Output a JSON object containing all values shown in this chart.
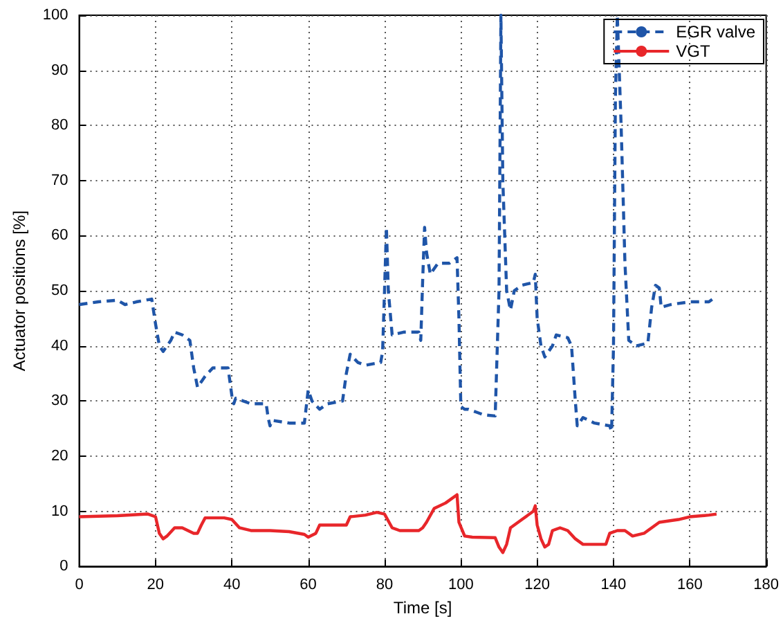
{
  "chart_data": {
    "type": "line",
    "xlabel": "Time [s]",
    "ylabel": "Actuator positions [%]",
    "xlim": [
      0,
      180
    ],
    "xticks": [
      0,
      20,
      40,
      60,
      80,
      100,
      120,
      140,
      160,
      180
    ],
    "ylim": [
      0,
      100
    ],
    "yticks": [
      0,
      10,
      20,
      30,
      40,
      50,
      60,
      70,
      80,
      90,
      100
    ],
    "grid": true,
    "legend": "top right",
    "series": [
      {
        "name": "EGR valve",
        "color": "#1f55a8",
        "line_style": "dashed",
        "x": [
          0,
          5,
          10,
          12,
          15,
          19,
          20,
          21,
          22,
          24,
          25,
          27,
          29,
          30,
          31,
          33,
          35,
          39,
          40,
          40.5,
          41,
          45,
          49,
          49.5,
          50,
          50.5,
          55,
          59,
          59.5,
          60,
          61,
          63,
          65,
          69,
          70,
          71,
          73,
          75,
          79,
          79.5,
          80,
          80.5,
          81,
          82,
          85,
          89,
          89.5,
          90,
          90.5,
          91,
          92,
          94,
          97,
          99,
          99.5,
          100,
          101,
          102,
          104,
          106,
          109,
          110,
          110.5,
          111,
          112,
          113,
          114,
          116,
          119,
          119.5,
          120,
          121,
          122,
          124,
          125,
          128,
          129,
          130,
          130.5,
          132,
          135,
          139,
          139.5,
          140,
          140.5,
          141,
          142,
          143,
          144,
          146,
          149,
          150,
          151,
          152,
          152.5,
          155,
          160,
          165,
          166,
          167
        ],
        "values": [
          47.5,
          48,
          48.3,
          47.5,
          48,
          48.5,
          44,
          40,
          39,
          41,
          42.5,
          42,
          41,
          36,
          32.5,
          34.5,
          36,
          36,
          31,
          29.5,
          30.5,
          29.5,
          29.5,
          27,
          25.5,
          26.5,
          26,
          26,
          29,
          32,
          30,
          28.5,
          29.5,
          30,
          35,
          38.5,
          37,
          36.5,
          37,
          39,
          50,
          61.5,
          50,
          42,
          42.5,
          42.5,
          41,
          52,
          61.5,
          57,
          53,
          55,
          55,
          56,
          45,
          29,
          28.5,
          28.5,
          28,
          27.5,
          27.3,
          50,
          100,
          70,
          50,
          46.5,
          50,
          51,
          51.5,
          53,
          45,
          40,
          38,
          40,
          42,
          41.5,
          40,
          30,
          25.5,
          27,
          26,
          25.5,
          24.5,
          40,
          85,
          100,
          80,
          55,
          41,
          40,
          40.5,
          47,
          51,
          50.5,
          47,
          47.5,
          48,
          48,
          48.5,
          48
        ]
      },
      {
        "name": "VGT",
        "color": "#e8262a",
        "line_style": "solid",
        "x": [
          0,
          10,
          18,
          20,
          21,
          22,
          23,
          25,
          27,
          30,
          31,
          32,
          33,
          38,
          40,
          42,
          45,
          50,
          55,
          59,
          60,
          62,
          63,
          69,
          70,
          71,
          75,
          78,
          80,
          82,
          84,
          89,
          90,
          91,
          93,
          96,
          99,
          99.5,
          101,
          103,
          109,
          110,
          111,
          112,
          113,
          116,
          119,
          119.5,
          120,
          121,
          122,
          123,
          124,
          126,
          128,
          130,
          132,
          138,
          139,
          141,
          143,
          145,
          148,
          150,
          152,
          157,
          160,
          165,
          167
        ],
        "values": [
          9,
          9.2,
          9.5,
          9,
          6,
          5,
          5.5,
          7,
          7,
          6,
          6,
          7.5,
          8.8,
          8.8,
          8.5,
          7,
          6.5,
          6.5,
          6.3,
          5.8,
          5.3,
          6,
          7.5,
          7.5,
          7.5,
          9,
          9.3,
          9.8,
          9.5,
          7,
          6.5,
          6.5,
          7,
          8,
          10.5,
          11.5,
          13,
          8,
          5.5,
          5.3,
          5.2,
          3.5,
          2.5,
          4,
          7,
          8.5,
          10,
          11,
          7.5,
          5,
          3.5,
          4,
          6.5,
          7,
          6.5,
          5,
          4,
          4,
          6,
          6.5,
          6.5,
          5.5,
          6,
          7,
          8,
          8.5,
          9,
          9.3,
          9.5
        ]
      }
    ]
  }
}
